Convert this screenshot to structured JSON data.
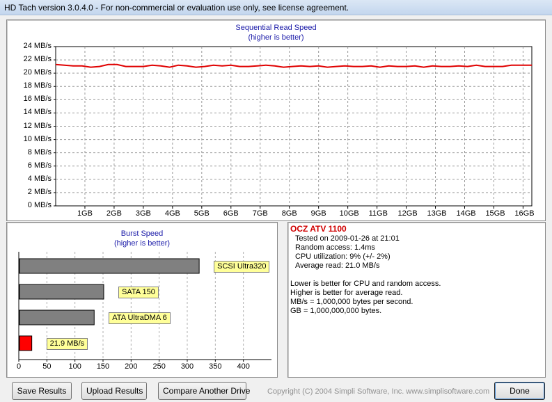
{
  "window": {
    "title": "HD Tach version 3.0.4.0  - For non-commercial or evaluation use only, see license agreement."
  },
  "read_chart": {
    "title": "Sequential Read Speed",
    "subtitle": "(higher is better)",
    "y_ticks": [
      "24 MB/s",
      "22 MB/s",
      "20 MB/s",
      "18 MB/s",
      "16 MB/s",
      "14 MB/s",
      "12 MB/s",
      "10 MB/s",
      "8 MB/s",
      "6 MB/s",
      "4 MB/s",
      "2 MB/s",
      "0 MB/s"
    ],
    "x_ticks": [
      "1GB",
      "2GB",
      "3GB",
      "4GB",
      "5GB",
      "6GB",
      "7GB",
      "8GB",
      "9GB",
      "10GB",
      "11GB",
      "12GB",
      "13GB",
      "14GB",
      "15GB",
      "16GB"
    ],
    "line_color": "#e00000"
  },
  "burst_chart": {
    "title": "Burst Speed",
    "subtitle": "(higher is better)",
    "x_ticks": [
      "0",
      "50",
      "100",
      "150",
      "200",
      "250",
      "300",
      "350",
      "400"
    ]
  },
  "chart_data": [
    {
      "type": "line",
      "title": "Sequential Read Speed",
      "subtitle": "(higher is better)",
      "xlabel": "",
      "ylabel": "",
      "xlim": [
        0,
        16.3
      ],
      "ylim": [
        0,
        24
      ],
      "grid": true,
      "series": [
        {
          "x": [
            0,
            0.3,
            0.6,
            0.9,
            1.2,
            1.5,
            1.8,
            2.1,
            2.4,
            2.7,
            3.0,
            3.3,
            3.6,
            3.9,
            4.2,
            4.5,
            4.8,
            5.1,
            5.4,
            5.7,
            6.0,
            6.3,
            6.6,
            6.9,
            7.2,
            7.5,
            7.8,
            8.1,
            8.4,
            8.7,
            9.0,
            9.3,
            9.6,
            9.9,
            10.2,
            10.5,
            10.8,
            11.1,
            11.4,
            11.7,
            12.0,
            12.3,
            12.6,
            12.9,
            13.2,
            13.5,
            13.8,
            14.1,
            14.4,
            14.7,
            15.0,
            15.3,
            15.6,
            15.9,
            16.3
          ],
          "y": [
            21.3,
            21.2,
            21.1,
            21.1,
            20.9,
            21.0,
            21.3,
            21.3,
            21.0,
            21.0,
            21.0,
            21.2,
            21.1,
            20.9,
            21.2,
            21.1,
            20.9,
            21.0,
            21.2,
            21.1,
            21.2,
            21.0,
            21.0,
            21.1,
            21.2,
            21.1,
            20.9,
            21.0,
            21.1,
            21.0,
            21.1,
            20.9,
            21.0,
            21.1,
            21.0,
            21.0,
            21.1,
            20.9,
            21.1,
            21.0,
            21.0,
            21.1,
            20.9,
            21.1,
            21.0,
            21.0,
            21.1,
            21.0,
            21.2,
            21.0,
            21.0,
            21.0,
            21.2,
            21.2,
            21.2
          ]
        }
      ]
    },
    {
      "type": "bar",
      "title": "Burst Speed",
      "subtitle": "(higher is better)",
      "orientation": "horizontal",
      "xlim": [
        0,
        450
      ],
      "categories": [
        "SCSI Ultra320",
        "SATA 150",
        "ATA UltraDMA 6",
        "21.9 MB/s"
      ],
      "values": [
        320,
        150,
        133,
        21.9
      ],
      "colors": [
        "#808080",
        "#808080",
        "#808080",
        "#ff0000"
      ]
    }
  ],
  "results": {
    "drive_name": "OCZ ATV 1100",
    "tested_on": "Tested on 2009-01-26 at 21:01",
    "random_access": "Random access: 1.4ms",
    "cpu_utilization": "CPU utilization: 9% (+/- 2%)",
    "average_read": "Average read: 21.0 MB/s",
    "notes": [
      "Lower is better for CPU and random access.",
      "Higher is better for average read.",
      "MB/s = 1,000,000 bytes per second.",
      "GB = 1,000,000,000 bytes."
    ]
  },
  "buttons": {
    "save": "Save Results",
    "upload": "Upload Results",
    "compare": "Compare Another Drive",
    "done": "Done"
  },
  "footer": {
    "copyright": "Copyright (C) 2004 Simpli Software, Inc. www.simplisoftware.com"
  }
}
